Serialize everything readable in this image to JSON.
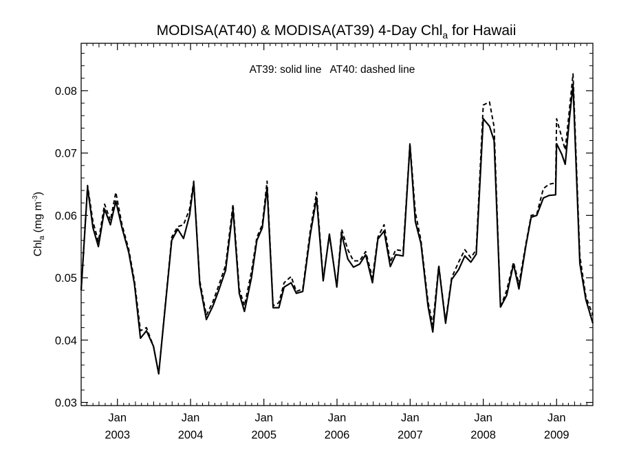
{
  "chart_data": {
    "type": "line",
    "title": "MODISA(AT40) & MODISA(AT39) 4-Day Chl",
    "title_subscript": "a",
    "title_suffix": " for Hawaii",
    "annotation": "AT39: solid line   AT40: dashed line",
    "ylabel": "Chl",
    "ylabel_subscript": "a",
    "ylabel_units": " (mg m",
    "ylabel_units_superscript": "-3",
    "ylabel_units_close": ")",
    "ylim": [
      0.0295,
      0.0876
    ],
    "xlim": [
      "2002-07-04",
      "2009-07-01"
    ],
    "y_ticks": [
      0.03,
      0.04,
      0.05,
      0.06,
      0.07,
      0.08
    ],
    "y_tick_labels": [
      "0.03",
      "0.04",
      "0.05",
      "0.06",
      "0.07",
      "0.08"
    ],
    "x_ticks": [
      {
        "date": "2003-01-01",
        "month": "Jan",
        "year": "2003"
      },
      {
        "date": "2004-01-01",
        "month": "Jan",
        "year": "2004"
      },
      {
        "date": "2005-01-01",
        "month": "Jan",
        "year": "2005"
      },
      {
        "date": "2006-01-01",
        "month": "Jan",
        "year": "2006"
      },
      {
        "date": "2007-01-01",
        "month": "Jan",
        "year": "2007"
      },
      {
        "date": "2008-01-01",
        "month": "Jan",
        "year": "2008"
      },
      {
        "date": "2009-01-01",
        "month": "Jan",
        "year": "2009"
      }
    ],
    "grid": false,
    "series": [
      {
        "name": "AT39",
        "style": "solid",
        "color": "#000000",
        "points": [
          [
            "2002-07-04",
            0.048
          ],
          [
            "2002-08-05",
            0.0645
          ],
          [
            "2002-09-01",
            0.058
          ],
          [
            "2002-09-28",
            0.055
          ],
          [
            "2002-10-29",
            0.061
          ],
          [
            "2002-11-27",
            0.0585
          ],
          [
            "2002-12-24",
            0.0623
          ],
          [
            "2003-01-24",
            0.058
          ],
          [
            "2003-02-27",
            0.054
          ],
          [
            "2003-03-27",
            0.049
          ],
          [
            "2003-04-26",
            0.0403
          ],
          [
            "2003-05-26",
            0.0415
          ],
          [
            "2003-06-30",
            0.039
          ],
          [
            "2003-07-26",
            0.0346
          ],
          [
            "2003-09-29",
            0.056
          ],
          [
            "2003-10-29",
            0.0578
          ],
          [
            "2003-11-27",
            0.0563
          ],
          [
            "2003-12-27",
            0.06
          ],
          [
            "2004-01-17",
            0.0652
          ],
          [
            "2004-02-16",
            0.049
          ],
          [
            "2004-03-20",
            0.0433
          ],
          [
            "2004-04-22",
            0.0455
          ],
          [
            "2004-05-21",
            0.048
          ],
          [
            "2004-06-24",
            0.0512
          ],
          [
            "2004-07-31",
            0.061
          ],
          [
            "2004-08-31",
            0.0475
          ],
          [
            "2004-09-26",
            0.0446
          ],
          [
            "2004-10-31",
            0.05
          ],
          [
            "2004-11-27",
            0.056
          ],
          [
            "2004-12-24",
            0.058
          ],
          [
            "2005-01-17",
            0.0645
          ],
          [
            "2005-02-16",
            0.0452
          ],
          [
            "2005-03-17",
            0.0452
          ],
          [
            "2005-04-12",
            0.0485
          ],
          [
            "2005-05-17",
            0.0492
          ],
          [
            "2005-06-12",
            0.0475
          ],
          [
            "2005-07-14",
            0.0478
          ],
          [
            "2005-08-21",
            0.057
          ],
          [
            "2005-09-21",
            0.0628
          ],
          [
            "2005-10-24",
            0.0495
          ],
          [
            "2005-11-24",
            0.057
          ],
          [
            "2005-12-31",
            0.0485
          ],
          [
            "2006-01-24",
            0.057
          ],
          [
            "2006-02-24",
            0.053
          ],
          [
            "2006-03-24",
            0.0517
          ],
          [
            "2006-04-24",
            0.0522
          ],
          [
            "2006-05-24",
            0.0537
          ],
          [
            "2006-06-27",
            0.0492
          ],
          [
            "2006-07-24",
            0.0562
          ],
          [
            "2006-08-24",
            0.0575
          ],
          [
            "2006-09-24",
            0.0518
          ],
          [
            "2006-10-21",
            0.0537
          ],
          [
            "2006-11-27",
            0.0535
          ],
          [
            "2006-12-31",
            0.0713
          ],
          [
            "2007-01-27",
            0.059
          ],
          [
            "2007-02-24",
            0.0555
          ],
          [
            "2007-03-31",
            0.0455
          ],
          [
            "2007-04-24",
            0.0413
          ],
          [
            "2007-05-24",
            0.0518
          ],
          [
            "2007-06-27",
            0.0427
          ],
          [
            "2007-07-27",
            0.0497
          ],
          [
            "2007-08-31",
            0.0513
          ],
          [
            "2007-10-01",
            0.0535
          ],
          [
            "2007-10-31",
            0.0525
          ],
          [
            "2007-11-27",
            0.0538
          ],
          [
            "2008-01-01",
            0.0755
          ],
          [
            "2008-02-01",
            0.0743
          ],
          [
            "2008-02-24",
            0.072
          ],
          [
            "2008-03-27",
            0.0453
          ],
          [
            "2008-04-27",
            0.0472
          ],
          [
            "2008-05-31",
            0.0522
          ],
          [
            "2008-06-27",
            0.0482
          ],
          [
            "2008-08-01",
            0.0552
          ],
          [
            "2008-08-27",
            0.0597
          ],
          [
            "2008-09-24",
            0.06
          ],
          [
            "2008-10-27",
            0.0628
          ],
          [
            "2008-11-24",
            0.0632
          ],
          [
            "2008-12-27",
            0.0633
          ],
          [
            "2009-01-01",
            0.0715
          ],
          [
            "2009-01-27",
            0.0698
          ],
          [
            "2009-02-13",
            0.0682
          ],
          [
            "2009-03-06",
            0.0755
          ],
          [
            "2009-03-24",
            0.081
          ],
          [
            "2009-04-27",
            0.0523
          ],
          [
            "2009-05-27",
            0.0465
          ],
          [
            "2009-07-01",
            0.0427
          ]
        ]
      },
      {
        "name": "AT40",
        "style": "dashed",
        "color": "#000000",
        "points": [
          [
            "2002-07-04",
            0.048
          ],
          [
            "2002-08-05",
            0.0648
          ],
          [
            "2002-09-01",
            0.059
          ],
          [
            "2002-09-28",
            0.0558
          ],
          [
            "2002-10-29",
            0.0618
          ],
          [
            "2002-11-27",
            0.0592
          ],
          [
            "2002-12-24",
            0.0637
          ],
          [
            "2003-01-24",
            0.0585
          ],
          [
            "2003-02-27",
            0.0545
          ],
          [
            "2003-03-27",
            0.0495
          ],
          [
            "2003-04-26",
            0.0415
          ],
          [
            "2003-05-26",
            0.042
          ],
          [
            "2003-06-30",
            0.039
          ],
          [
            "2003-07-26",
            0.0346
          ],
          [
            "2003-09-29",
            0.0565
          ],
          [
            "2003-10-29",
            0.0582
          ],
          [
            "2003-11-27",
            0.0585
          ],
          [
            "2003-12-27",
            0.061
          ],
          [
            "2004-01-17",
            0.0655
          ],
          [
            "2004-02-16",
            0.0495
          ],
          [
            "2004-03-20",
            0.044
          ],
          [
            "2004-04-22",
            0.0462
          ],
          [
            "2004-05-21",
            0.0488
          ],
          [
            "2004-06-24",
            0.052
          ],
          [
            "2004-07-31",
            0.0618
          ],
          [
            "2004-08-31",
            0.0482
          ],
          [
            "2004-09-26",
            0.0455
          ],
          [
            "2004-10-31",
            0.051
          ],
          [
            "2004-11-27",
            0.0565
          ],
          [
            "2004-12-24",
            0.0585
          ],
          [
            "2005-01-17",
            0.0655
          ],
          [
            "2005-02-16",
            0.0455
          ],
          [
            "2005-03-17",
            0.046
          ],
          [
            "2005-04-12",
            0.0492
          ],
          [
            "2005-05-17",
            0.0502
          ],
          [
            "2005-06-12",
            0.0478
          ],
          [
            "2005-07-14",
            0.0482
          ],
          [
            "2005-08-21",
            0.0577
          ],
          [
            "2005-09-21",
            0.0637
          ],
          [
            "2005-10-24",
            0.0498
          ],
          [
            "2005-11-24",
            0.0568
          ],
          [
            "2005-12-31",
            0.0487
          ],
          [
            "2006-01-24",
            0.0578
          ],
          [
            "2006-02-24",
            0.0545
          ],
          [
            "2006-03-24",
            0.0527
          ],
          [
            "2006-04-24",
            0.0527
          ],
          [
            "2006-05-24",
            0.0542
          ],
          [
            "2006-06-27",
            0.05
          ],
          [
            "2006-07-24",
            0.0565
          ],
          [
            "2006-08-24",
            0.0585
          ],
          [
            "2006-09-24",
            0.0525
          ],
          [
            "2006-10-21",
            0.0545
          ],
          [
            "2006-11-27",
            0.0543
          ],
          [
            "2006-12-31",
            0.0716
          ],
          [
            "2007-01-27",
            0.0605
          ],
          [
            "2007-02-24",
            0.056
          ],
          [
            "2007-03-31",
            0.0462
          ],
          [
            "2007-04-24",
            0.0425
          ],
          [
            "2007-05-24",
            0.052
          ],
          [
            "2007-06-27",
            0.043
          ],
          [
            "2007-07-27",
            0.05
          ],
          [
            "2007-08-31",
            0.0525
          ],
          [
            "2007-10-01",
            0.0545
          ],
          [
            "2007-10-31",
            0.0532
          ],
          [
            "2007-11-27",
            0.0545
          ],
          [
            "2008-01-01",
            0.0777
          ],
          [
            "2008-02-01",
            0.0782
          ],
          [
            "2008-02-24",
            0.0742
          ],
          [
            "2008-03-27",
            0.0453
          ],
          [
            "2008-04-27",
            0.048
          ],
          [
            "2008-05-31",
            0.0525
          ],
          [
            "2008-06-27",
            0.049
          ],
          [
            "2008-08-01",
            0.0555
          ],
          [
            "2008-08-27",
            0.06
          ],
          [
            "2008-09-24",
            0.0602
          ],
          [
            "2008-10-27",
            0.0643
          ],
          [
            "2008-11-24",
            0.065
          ],
          [
            "2008-12-27",
            0.0652
          ],
          [
            "2009-01-01",
            0.0755
          ],
          [
            "2009-01-27",
            0.0725
          ],
          [
            "2009-02-13",
            0.0705
          ],
          [
            "2009-03-06",
            0.077
          ],
          [
            "2009-03-24",
            0.0827
          ],
          [
            "2009-04-27",
            0.0535
          ],
          [
            "2009-05-27",
            0.047
          ],
          [
            "2009-07-01",
            0.044
          ]
        ]
      }
    ]
  }
}
